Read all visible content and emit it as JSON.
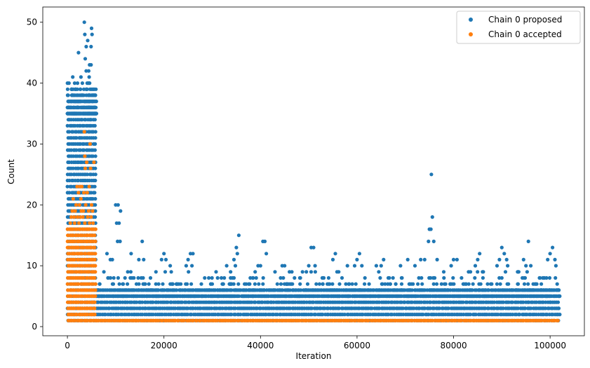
{
  "chart_data": {
    "type": "scatter",
    "title": "",
    "xlabel": "Iteration",
    "ylabel": "Count",
    "xlim": [
      -5100,
      107100
    ],
    "ylim": [
      -1.5,
      52.5
    ],
    "xticks": [
      0,
      20000,
      40000,
      60000,
      80000,
      100000
    ],
    "xtick_labels": [
      "0",
      "20000",
      "40000",
      "60000",
      "80000",
      "100000"
    ],
    "yticks": [
      0,
      10,
      20,
      30,
      40,
      50
    ],
    "ytick_labels": [
      "0",
      "10",
      "20",
      "30",
      "40",
      "50"
    ],
    "grid": false,
    "legend_position": "top-right",
    "series": [
      {
        "name": "Chain 0 proposed",
        "color": "#1f77b4",
        "marker": "circle",
        "regions": [
          {
            "x_range": [
              0,
              6000
            ],
            "max_value": 35,
            "description_values": [
              1,
              35
            ]
          },
          {
            "x_range": [
              6000,
              102000
            ],
            "max_value": 6,
            "description_values": [
              1,
              6
            ]
          }
        ],
        "points": [
          [
            3500,
            50
          ],
          [
            5000,
            49
          ],
          [
            5100,
            48
          ],
          [
            3600,
            48
          ],
          [
            4200,
            47
          ],
          [
            4900,
            46
          ],
          [
            3900,
            46
          ],
          [
            2300,
            45
          ],
          [
            3700,
            44
          ],
          [
            4600,
            43
          ],
          [
            4900,
            43
          ],
          [
            3900,
            42
          ],
          [
            4400,
            42
          ],
          [
            2800,
            41
          ],
          [
            1100,
            41
          ],
          [
            4500,
            41
          ],
          [
            1500,
            40
          ],
          [
            2100,
            40
          ],
          [
            3100,
            40
          ],
          [
            4100,
            40
          ],
          [
            4600,
            40
          ],
          [
            1200,
            39
          ],
          [
            1800,
            39
          ],
          [
            2700,
            39
          ],
          [
            3400,
            39
          ],
          [
            3900,
            39
          ],
          [
            4700,
            39
          ],
          [
            5200,
            38
          ],
          [
            2500,
            38
          ],
          [
            900,
            37
          ],
          [
            1600,
            37
          ],
          [
            3200,
            37
          ],
          [
            4300,
            37
          ],
          [
            5100,
            37
          ],
          [
            1300,
            36
          ],
          [
            2000,
            36
          ],
          [
            3600,
            36
          ],
          [
            4400,
            36
          ],
          [
            10000,
            20
          ],
          [
            10500,
            20
          ],
          [
            11000,
            19
          ],
          [
            10200,
            17
          ],
          [
            10700,
            17
          ],
          [
            10400,
            14
          ],
          [
            10900,
            14
          ],
          [
            15500,
            14
          ],
          [
            15800,
            11
          ],
          [
            14800,
            11
          ],
          [
            13200,
            12
          ],
          [
            8200,
            12
          ],
          [
            8900,
            11
          ],
          [
            9300,
            11
          ],
          [
            20000,
            12
          ],
          [
            20400,
            11
          ],
          [
            19500,
            11
          ],
          [
            21300,
            10
          ],
          [
            25500,
            12
          ],
          [
            26000,
            12
          ],
          [
            25000,
            11
          ],
          [
            24600,
            10
          ],
          [
            25800,
            10
          ],
          [
            30000,
            7
          ],
          [
            31100,
            6
          ],
          [
            32500,
            8
          ],
          [
            33000,
            10
          ],
          [
            34500,
            11
          ],
          [
            35000,
            13
          ],
          [
            35500,
            15
          ],
          [
            35200,
            12
          ],
          [
            34800,
            10
          ],
          [
            33800,
            9
          ],
          [
            40000,
            10
          ],
          [
            40500,
            14
          ],
          [
            40900,
            14
          ],
          [
            41200,
            12
          ],
          [
            39500,
            10
          ],
          [
            38400,
            8
          ],
          [
            38900,
            9
          ],
          [
            43000,
            9
          ],
          [
            44500,
            10
          ],
          [
            45000,
            10
          ],
          [
            46000,
            9
          ],
          [
            46500,
            9
          ],
          [
            50000,
            10
          ],
          [
            50500,
            13
          ],
          [
            51000,
            13
          ],
          [
            51300,
            10
          ],
          [
            49500,
            9
          ],
          [
            48700,
            9
          ],
          [
            53000,
            8
          ],
          [
            55000,
            11
          ],
          [
            55500,
            12
          ],
          [
            56200,
            9
          ],
          [
            58000,
            10
          ],
          [
            59500,
            10
          ],
          [
            60000,
            11
          ],
          [
            60500,
            12
          ],
          [
            61000,
            10
          ],
          [
            62500,
            7
          ],
          [
            64000,
            10
          ],
          [
            65000,
            10
          ],
          [
            65500,
            11
          ],
          [
            64500,
            9
          ],
          [
            69000,
            10
          ],
          [
            70500,
            11
          ],
          [
            72000,
            10
          ],
          [
            73200,
            11
          ],
          [
            74000,
            11
          ],
          [
            74800,
            14
          ],
          [
            75000,
            16
          ],
          [
            75300,
            16
          ],
          [
            75400,
            25
          ],
          [
            75600,
            18
          ],
          [
            75900,
            14
          ],
          [
            76600,
            11
          ],
          [
            78000,
            8
          ],
          [
            79500,
            10
          ],
          [
            80000,
            11
          ],
          [
            80700,
            11
          ],
          [
            82000,
            7
          ],
          [
            83500,
            9
          ],
          [
            84500,
            10
          ],
          [
            85000,
            11
          ],
          [
            85400,
            12
          ],
          [
            86000,
            9
          ],
          [
            89000,
            10
          ],
          [
            89500,
            11
          ],
          [
            90000,
            13
          ],
          [
            90500,
            12
          ],
          [
            91000,
            11
          ],
          [
            91200,
            10
          ],
          [
            93500,
            9
          ],
          [
            94500,
            11
          ],
          [
            95000,
            10
          ],
          [
            95500,
            14
          ],
          [
            96000,
            10
          ],
          [
            96500,
            7
          ],
          [
            98500,
            8
          ],
          [
            99500,
            11
          ],
          [
            100000,
            12
          ],
          [
            100500,
            13
          ],
          [
            101000,
            11
          ],
          [
            101200,
            10
          ],
          [
            101800,
            3
          ],
          [
            102000,
            2
          ]
        ]
      },
      {
        "name": "Chain 0 accepted",
        "color": "#ff7f0e",
        "marker": "circle",
        "regions": [
          {
            "x_range": [
              0,
              6000
            ],
            "max_value": 16,
            "description_values": [
              1,
              16
            ]
          },
          {
            "x_range": [
              6000,
              102000
            ],
            "max_value": 1,
            "description_values": [
              1
            ]
          }
        ],
        "points": [
          [
            3500,
            32
          ],
          [
            4700,
            30
          ],
          [
            3600,
            28
          ],
          [
            4000,
            27
          ],
          [
            5500,
            27
          ],
          [
            4800,
            26
          ],
          [
            3700,
            26
          ],
          [
            2000,
            23
          ],
          [
            2600,
            23
          ],
          [
            3000,
            23
          ],
          [
            4500,
            23
          ],
          [
            2300,
            22
          ],
          [
            3400,
            22
          ],
          [
            4100,
            22
          ],
          [
            1200,
            21
          ],
          [
            2800,
            21
          ],
          [
            1800,
            20
          ],
          [
            2500,
            20
          ],
          [
            3800,
            20
          ],
          [
            5000,
            20
          ],
          [
            1000,
            19
          ],
          [
            1600,
            19
          ],
          [
            2900,
            19
          ],
          [
            3300,
            19
          ],
          [
            4400,
            19
          ],
          [
            5200,
            19
          ],
          [
            800,
            18
          ],
          [
            1400,
            18
          ],
          [
            2100,
            18
          ],
          [
            2700,
            18
          ],
          [
            3200,
            18
          ],
          [
            4200,
            18
          ],
          [
            4900,
            18
          ],
          [
            600,
            17
          ],
          [
            1500,
            17
          ],
          [
            2400,
            17
          ],
          [
            3600,
            17
          ],
          [
            4600,
            17
          ],
          [
            5300,
            17
          ],
          [
            700,
            16
          ],
          [
            1100,
            16
          ],
          [
            1900,
            16
          ],
          [
            2600,
            16
          ],
          [
            3100,
            16
          ],
          [
            3900,
            16
          ],
          [
            4300,
            16
          ],
          [
            5100,
            16
          ],
          [
            5700,
            16
          ]
        ]
      }
    ]
  }
}
